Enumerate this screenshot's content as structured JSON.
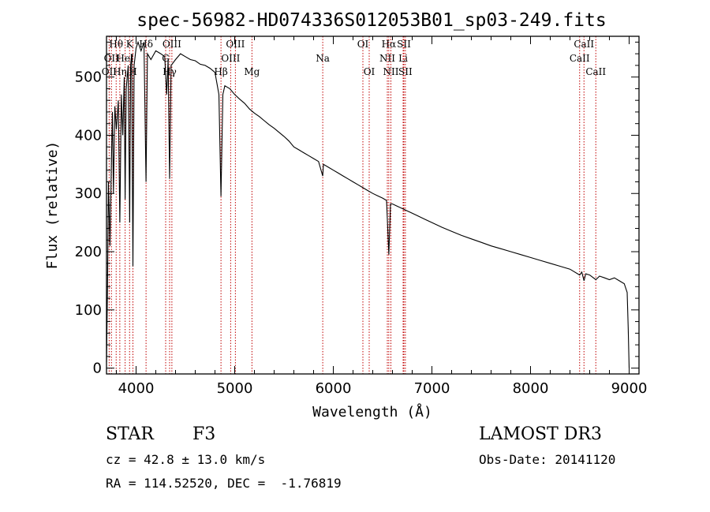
{
  "chart_data": {
    "type": "line",
    "title": "spec-56982-HD074336S012053B01_sp03-249.fits",
    "xlabel": "Wavelength (Å)",
    "ylabel": "Flux (relative)",
    "xlim": [
      3700,
      9100
    ],
    "ylim": [
      -10,
      570
    ],
    "xticks": [
      4000,
      5000,
      6000,
      7000,
      8000,
      9000
    ],
    "yticks": [
      0,
      100,
      200,
      300,
      400,
      500
    ],
    "grid": false,
    "legend": "none",
    "series": [
      {
        "name": "flux",
        "points": [
          [
            3700,
            10
          ],
          [
            3710,
            140
          ],
          [
            3720,
            320
          ],
          [
            3735,
            210
          ],
          [
            3750,
            360
          ],
          [
            3760,
            440
          ],
          [
            3770,
            300
          ],
          [
            3785,
            450
          ],
          [
            3800,
            410
          ],
          [
            3820,
            460
          ],
          [
            3835,
            250
          ],
          [
            3850,
            470
          ],
          [
            3865,
            400
          ],
          [
            3880,
            500
          ],
          [
            3889,
            290
          ],
          [
            3900,
            480
          ],
          [
            3920,
            520
          ],
          [
            3935,
            250
          ],
          [
            3945,
            520
          ],
          [
            3955,
            540
          ],
          [
            3968,
            175
          ],
          [
            3980,
            520
          ],
          [
            4000,
            550
          ],
          [
            4020,
            560
          ],
          [
            4050,
            545
          ],
          [
            4080,
            560
          ],
          [
            4101,
            320
          ],
          [
            4115,
            540
          ],
          [
            4150,
            530
          ],
          [
            4200,
            545
          ],
          [
            4250,
            540
          ],
          [
            4290,
            535
          ],
          [
            4310,
            470
          ],
          [
            4325,
            530
          ],
          [
            4340,
            325
          ],
          [
            4355,
            520
          ],
          [
            4400,
            530
          ],
          [
            4450,
            540
          ],
          [
            4500,
            535
          ],
          [
            4550,
            530
          ],
          [
            4600,
            528
          ],
          [
            4650,
            522
          ],
          [
            4700,
            520
          ],
          [
            4750,
            515
          ],
          [
            4800,
            508
          ],
          [
            4840,
            470
          ],
          [
            4861,
            295
          ],
          [
            4880,
            470
          ],
          [
            4900,
            485
          ],
          [
            4950,
            480
          ],
          [
            5000,
            470
          ],
          [
            5050,
            462
          ],
          [
            5100,
            455
          ],
          [
            5150,
            445
          ],
          [
            5200,
            438
          ],
          [
            5250,
            432
          ],
          [
            5300,
            425
          ],
          [
            5350,
            418
          ],
          [
            5400,
            412
          ],
          [
            5450,
            405
          ],
          [
            5500,
            398
          ],
          [
            5550,
            390
          ],
          [
            5600,
            380
          ],
          [
            5650,
            375
          ],
          [
            5700,
            370
          ],
          [
            5750,
            365
          ],
          [
            5800,
            360
          ],
          [
            5850,
            355
          ],
          [
            5893,
            330
          ],
          [
            5900,
            350
          ],
          [
            5950,
            345
          ],
          [
            6000,
            340
          ],
          [
            6050,
            335
          ],
          [
            6100,
            330
          ],
          [
            6150,
            325
          ],
          [
            6200,
            320
          ],
          [
            6250,
            315
          ],
          [
            6300,
            310
          ],
          [
            6350,
            305
          ],
          [
            6400,
            300
          ],
          [
            6450,
            296
          ],
          [
            6500,
            292
          ],
          [
            6540,
            288
          ],
          [
            6563,
            195
          ],
          [
            6580,
            282
          ],
          [
            6600,
            282
          ],
          [
            6650,
            278
          ],
          [
            6700,
            274
          ],
          [
            6750,
            270
          ],
          [
            6800,
            266
          ],
          [
            6850,
            262
          ],
          [
            6900,
            258
          ],
          [
            6950,
            254
          ],
          [
            7000,
            250
          ],
          [
            7100,
            242
          ],
          [
            7200,
            235
          ],
          [
            7300,
            228
          ],
          [
            7400,
            222
          ],
          [
            7500,
            216
          ],
          [
            7600,
            210
          ],
          [
            7700,
            205
          ],
          [
            7800,
            200
          ],
          [
            7900,
            195
          ],
          [
            8000,
            190
          ],
          [
            8100,
            185
          ],
          [
            8200,
            180
          ],
          [
            8300,
            175
          ],
          [
            8400,
            170
          ],
          [
            8498,
            160
          ],
          [
            8520,
            165
          ],
          [
            8542,
            150
          ],
          [
            8560,
            162
          ],
          [
            8600,
            160
          ],
          [
            8662,
            152
          ],
          [
            8700,
            158
          ],
          [
            8750,
            155
          ],
          [
            8800,
            152
          ],
          [
            8850,
            155
          ],
          [
            8900,
            150
          ],
          [
            8950,
            145
          ],
          [
            8980,
            130
          ],
          [
            8990,
            70
          ],
          [
            9000,
            0
          ]
        ]
      }
    ],
    "lines": [
      {
        "wave": 3727,
        "label": "OII",
        "row": 2
      },
      {
        "wave": 3750,
        "label": "OII",
        "row": 1
      },
      {
        "wave": 3798,
        "label": "Hθ",
        "row": 0
      },
      {
        "wave": 3835,
        "label": "Hη",
        "row": 2
      },
      {
        "wave": 3889,
        "label": "HeI",
        "row": 1
      },
      {
        "wave": 3934,
        "label": "K",
        "row": 0
      },
      {
        "wave": 3968,
        "label": "H",
        "row": 2
      },
      {
        "wave": 4101,
        "label": "Hδ",
        "row": 0
      },
      {
        "wave": 4300,
        "label": "G",
        "row": 1
      },
      {
        "wave": 4340,
        "label": "Hγ",
        "row": 2
      },
      {
        "wave": 4363,
        "label": "OIII",
        "row": 0
      },
      {
        "wave": 4861,
        "label": "Hβ",
        "row": 2
      },
      {
        "wave": 4959,
        "label": "OIII",
        "row": 1
      },
      {
        "wave": 5007,
        "label": "OIII",
        "row": 0
      },
      {
        "wave": 5175,
        "label": "Mg",
        "row": 2
      },
      {
        "wave": 5893,
        "label": "Na",
        "row": 1
      },
      {
        "wave": 6300,
        "label": "OI",
        "row": 0
      },
      {
        "wave": 6364,
        "label": "OI",
        "row": 2
      },
      {
        "wave": 6548,
        "label": "NII",
        "row": 1
      },
      {
        "wave": 6563,
        "label": "Hα",
        "row": 0
      },
      {
        "wave": 6584,
        "label": "NII",
        "row": 2
      },
      {
        "wave": 6708,
        "label": "Li",
        "row": 1
      },
      {
        "wave": 6716,
        "label": "SII",
        "row": 0
      },
      {
        "wave": 6731,
        "label": "SII",
        "row": 2
      },
      {
        "wave": 8498,
        "label": "CaII",
        "row": 1
      },
      {
        "wave": 8542,
        "label": "CaII",
        "row": 0
      },
      {
        "wave": 8662,
        "label": "CaII",
        "row": 2
      }
    ]
  },
  "info": {
    "object_class": "STAR",
    "subclass": "F3",
    "survey": "LAMOST DR3",
    "redshift": "cz = 42.8 ± 13.0 km/s",
    "obs_date": "Obs-Date: 20141120",
    "coords": "RA = 114.52520, DEC =  -1.76819"
  },
  "colors": {
    "spectrum": "#000000",
    "line_marker": "#c00000",
    "axes": "#000000",
    "background": "#ffffff"
  }
}
